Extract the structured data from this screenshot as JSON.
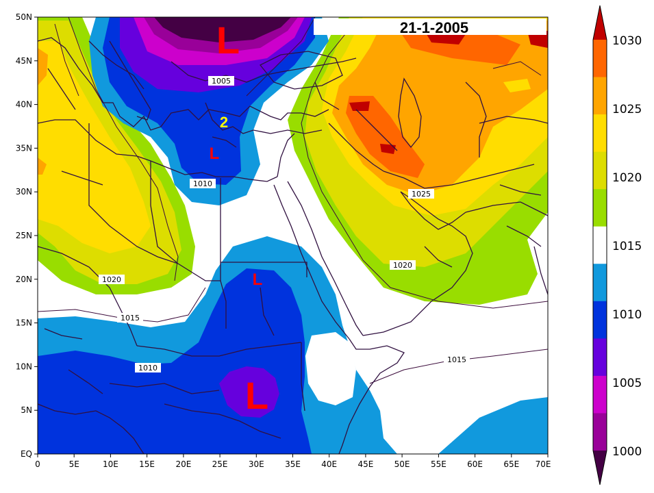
{
  "date": "21-1-2005",
  "lat_labels": [
    "50N",
    "45N",
    "40N",
    "35N",
    "30N",
    "25N",
    "20N",
    "15N",
    "10N",
    "5N",
    "EQ"
  ],
  "lon_labels": [
    "0",
    "5E",
    "10E",
    "15E",
    "20E",
    "25E",
    "30E",
    "35E",
    "40E",
    "45E",
    "50E",
    "55E",
    "60E",
    "65E",
    "70E"
  ],
  "isobar_labels": [
    "1005",
    "1010",
    "1025",
    "1020",
    "1020",
    "1015",
    "1010",
    "1015"
  ],
  "low_markers": [
    "L",
    "L",
    "L",
    "L"
  ],
  "marker_number": "2",
  "colorbar": {
    "labels": [
      "1030",
      "1025",
      "1020",
      "1015",
      "1010",
      "1005",
      "1000"
    ],
    "colors": [
      "#c00000",
      "#ff6600",
      "#ffa500",
      "#ffdd00",
      "#dddd00",
      "#99dd00",
      "#ffffff",
      "#1199dd",
      "#0033dd",
      "#6600dd",
      "#cc00cc",
      "#990099",
      "#440044"
    ]
  },
  "palette": {
    "c1000": "#440044",
    "c1002": "#990099",
    "c1004": "#cc00cc",
    "c1006": "#6600dd",
    "c1008": "#0033dd",
    "c1010": "#1199dd",
    "c1014": "#ffffff",
    "c1016": "#99dd00",
    "c1018": "#dddd00",
    "c1020": "#ffdd00",
    "c1022": "#ffa500",
    "c1024": "#ff6600",
    "c1026": "#c00000"
  }
}
